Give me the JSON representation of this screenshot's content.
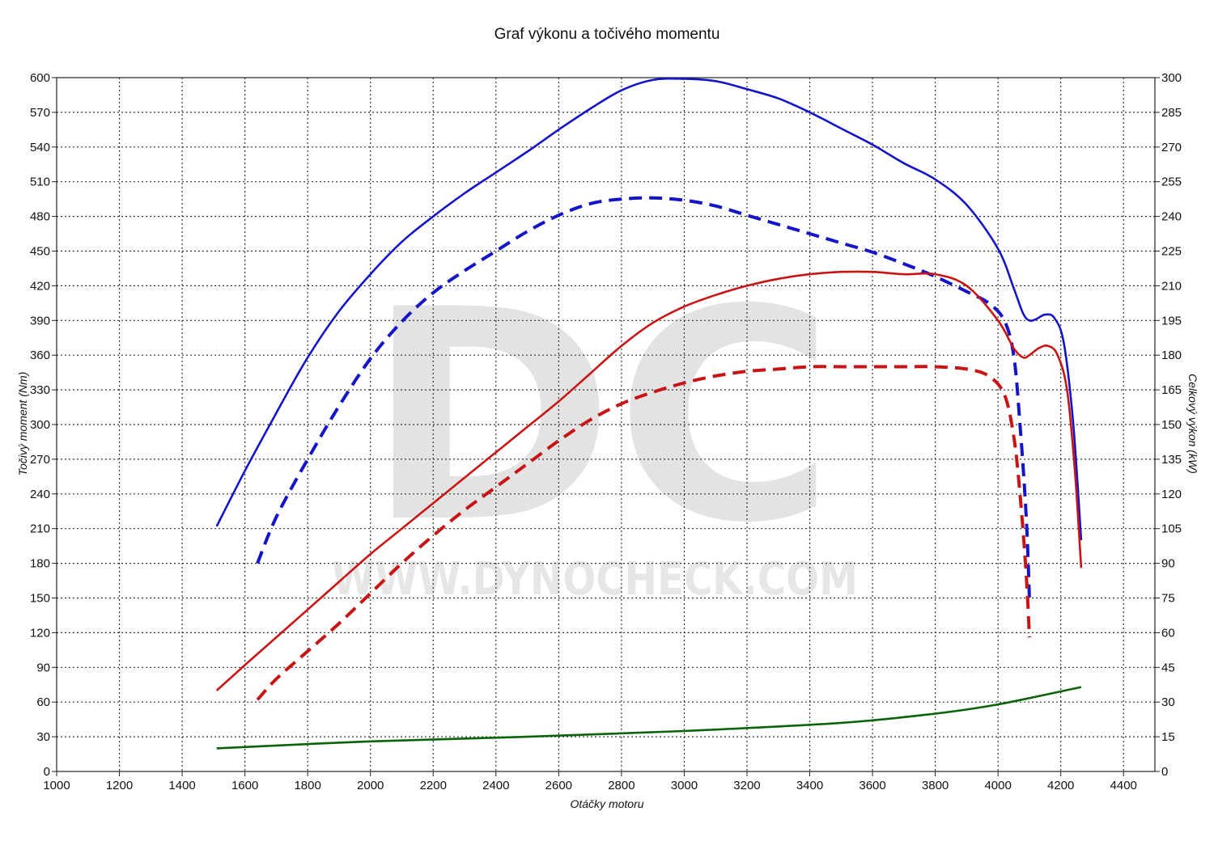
{
  "chart_data": {
    "type": "line",
    "title": "Graf výkonu a točivého momentu",
    "xlabel": "Otáčky motoru",
    "ylabel_left": "Točivý moment (Nm)",
    "ylabel_right": "Celkový výkon (kW)",
    "xlim": [
      1000,
      4500
    ],
    "ylim_left": [
      0,
      600
    ],
    "ylim_right": [
      0,
      300
    ],
    "x_ticks": [
      "1000",
      "1200",
      "1400",
      "1600",
      "1800",
      "2000",
      "2200",
      "2400",
      "2600",
      "2800",
      "3000",
      "3200",
      "3400",
      "3600",
      "3800",
      "4000",
      "4200",
      "4400"
    ],
    "y_ticks_left": [
      "0",
      "30",
      "60",
      "90",
      "120",
      "150",
      "180",
      "210",
      "240",
      "270",
      "300",
      "330",
      "360",
      "390",
      "420",
      "450",
      "480",
      "510",
      "540",
      "570",
      "600"
    ],
    "y_ticks_right": [
      "0",
      "15",
      "30",
      "45",
      "60",
      "75",
      "90",
      "105",
      "120",
      "135",
      "150",
      "165",
      "180",
      "195",
      "210",
      "225",
      "240",
      "255",
      "270",
      "285",
      "300"
    ],
    "grid": true,
    "watermark": {
      "logo": "DC",
      "url": "WWW.DYNOCHECK.COM"
    },
    "series": [
      {
        "axis": "left",
        "color": "#1414c8",
        "style": "solid",
        "points": [
          [
            1510,
            212
          ],
          [
            1600,
            260
          ],
          [
            1700,
            310
          ],
          [
            1800,
            358
          ],
          [
            1900,
            398
          ],
          [
            2000,
            430
          ],
          [
            2100,
            458
          ],
          [
            2200,
            480
          ],
          [
            2300,
            500
          ],
          [
            2400,
            518
          ],
          [
            2500,
            536
          ],
          [
            2600,
            555
          ],
          [
            2700,
            573
          ],
          [
            2800,
            589
          ],
          [
            2900,
            598
          ],
          [
            3000,
            599
          ],
          [
            3100,
            597
          ],
          [
            3200,
            590
          ],
          [
            3300,
            582
          ],
          [
            3400,
            570
          ],
          [
            3500,
            556
          ],
          [
            3600,
            542
          ],
          [
            3700,
            526
          ],
          [
            3800,
            512
          ],
          [
            3900,
            490
          ],
          [
            4000,
            452
          ],
          [
            4050,
            418
          ],
          [
            4080,
            396
          ],
          [
            4100,
            390
          ],
          [
            4120,
            391
          ],
          [
            4150,
            395
          ],
          [
            4180,
            392
          ],
          [
            4210,
            370
          ],
          [
            4240,
            300
          ],
          [
            4265,
            200
          ]
        ]
      },
      {
        "axis": "left",
        "color": "#1414c8",
        "style": "dashed",
        "points": [
          [
            1640,
            180
          ],
          [
            1700,
            220
          ],
          [
            1800,
            270
          ],
          [
            1900,
            316
          ],
          [
            2000,
            357
          ],
          [
            2100,
            389
          ],
          [
            2200,
            414
          ],
          [
            2300,
            433
          ],
          [
            2400,
            450
          ],
          [
            2500,
            467
          ],
          [
            2600,
            481
          ],
          [
            2700,
            491
          ],
          [
            2800,
            495
          ],
          [
            2900,
            496
          ],
          [
            3000,
            494
          ],
          [
            3100,
            489
          ],
          [
            3200,
            481
          ],
          [
            3300,
            473
          ],
          [
            3400,
            465
          ],
          [
            3500,
            457
          ],
          [
            3600,
            449
          ],
          [
            3700,
            439
          ],
          [
            3800,
            428
          ],
          [
            3900,
            415
          ],
          [
            3970,
            405
          ],
          [
            4020,
            390
          ],
          [
            4050,
            360
          ],
          [
            4070,
            300
          ],
          [
            4090,
            220
          ],
          [
            4100,
            150
          ]
        ]
      },
      {
        "axis": "right",
        "color": "#c81414",
        "style": "solid",
        "points": [
          [
            1510,
            35
          ],
          [
            1600,
            46
          ],
          [
            1700,
            58
          ],
          [
            1800,
            70
          ],
          [
            1900,
            82
          ],
          [
            2000,
            94
          ],
          [
            2100,
            105
          ],
          [
            2200,
            116
          ],
          [
            2300,
            127
          ],
          [
            2400,
            138
          ],
          [
            2500,
            149
          ],
          [
            2600,
            160
          ],
          [
            2700,
            172
          ],
          [
            2800,
            184
          ],
          [
            2900,
            194
          ],
          [
            3000,
            201
          ],
          [
            3100,
            206
          ],
          [
            3200,
            210
          ],
          [
            3300,
            213
          ],
          [
            3400,
            215
          ],
          [
            3500,
            216
          ],
          [
            3600,
            216
          ],
          [
            3700,
            215
          ],
          [
            3800,
            215
          ],
          [
            3900,
            210
          ],
          [
            4000,
            195
          ],
          [
            4050,
            183
          ],
          [
            4080,
            179
          ],
          [
            4100,
            180
          ],
          [
            4130,
            183
          ],
          [
            4160,
            184
          ],
          [
            4190,
            180
          ],
          [
            4220,
            165
          ],
          [
            4245,
            130
          ],
          [
            4265,
            88
          ]
        ]
      },
      {
        "axis": "right",
        "color": "#c81414",
        "style": "dashed",
        "points": [
          [
            1640,
            31
          ],
          [
            1700,
            40
          ],
          [
            1800,
            52
          ],
          [
            1900,
            64
          ],
          [
            2000,
            77
          ],
          [
            2100,
            90
          ],
          [
            2200,
            102
          ],
          [
            2300,
            113
          ],
          [
            2400,
            123
          ],
          [
            2500,
            133
          ],
          [
            2600,
            143
          ],
          [
            2700,
            152
          ],
          [
            2800,
            159
          ],
          [
            2900,
            164
          ],
          [
            3000,
            168
          ],
          [
            3100,
            171
          ],
          [
            3200,
            173
          ],
          [
            3300,
            174
          ],
          [
            3400,
            175
          ],
          [
            3500,
            175
          ],
          [
            3600,
            175
          ],
          [
            3700,
            175
          ],
          [
            3800,
            175
          ],
          [
            3900,
            174
          ],
          [
            3970,
            171
          ],
          [
            4020,
            163
          ],
          [
            4050,
            145
          ],
          [
            4070,
            120
          ],
          [
            4090,
            85
          ],
          [
            4100,
            58
          ]
        ]
      },
      {
        "axis": "left",
        "color": "#0a640a",
        "style": "solid",
        "points": [
          [
            1510,
            20
          ],
          [
            2000,
            26
          ],
          [
            2500,
            30
          ],
          [
            3000,
            35
          ],
          [
            3500,
            42
          ],
          [
            3800,
            50
          ],
          [
            4000,
            58
          ],
          [
            4265,
            73
          ]
        ]
      }
    ]
  }
}
